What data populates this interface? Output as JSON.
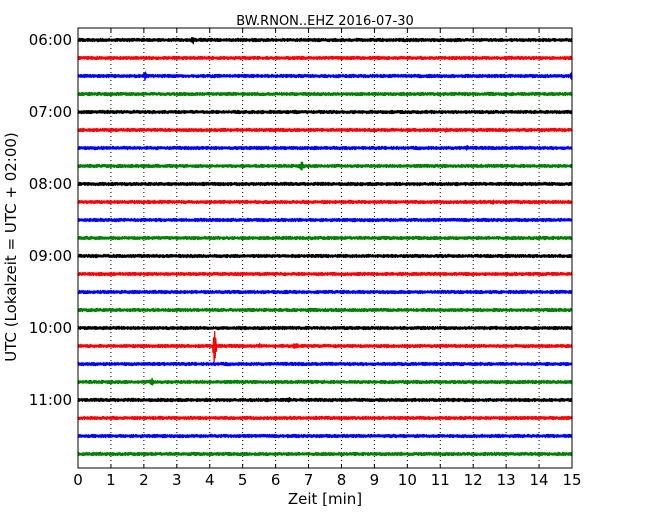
{
  "chart_data": {
    "type": "line",
    "title": "BW.RNON..EHZ 2016-07-30",
    "xlabel": "Zeit  [min]",
    "ylabel": "UTC (Lokalzeit = UTC + 02:00)",
    "xlim": [
      0,
      15
    ],
    "x_ticks": [
      "0",
      "1",
      "2",
      "3",
      "4",
      "5",
      "6",
      "7",
      "8",
      "9",
      "10",
      "11",
      "12",
      "13",
      "14",
      "15"
    ],
    "y_ticks": [
      "06:00",
      "07:00",
      "08:00",
      "09:00",
      "10:00",
      "11:00"
    ],
    "grid": "vertical-dotted",
    "trace_colors": [
      "#000000",
      "#ff0000",
      "#0000ff",
      "#008000"
    ],
    "traces": [
      {
        "start": "06:00",
        "events": [
          [
            3.5,
            4
          ]
        ]
      },
      {
        "start": "06:15",
        "events": []
      },
      {
        "start": "06:30",
        "events": [
          [
            2.05,
            5
          ],
          [
            15.0,
            4
          ]
        ]
      },
      {
        "start": "06:45",
        "events": []
      },
      {
        "start": "07:00",
        "events": []
      },
      {
        "start": "07:15",
        "events": [
          [
            11.2,
            3
          ]
        ]
      },
      {
        "start": "07:30",
        "events": [
          [
            11.8,
            3
          ]
        ]
      },
      {
        "start": "07:45",
        "events": [
          [
            6.8,
            5
          ]
        ]
      },
      {
        "start": "08:00",
        "events": []
      },
      {
        "start": "08:15",
        "events": [
          [
            12.6,
            3
          ]
        ]
      },
      {
        "start": "08:30",
        "events": []
      },
      {
        "start": "08:45",
        "events": [
          [
            14.0,
            3
          ]
        ]
      },
      {
        "start": "09:00",
        "events": []
      },
      {
        "start": "09:15",
        "events": []
      },
      {
        "start": "09:30",
        "events": []
      },
      {
        "start": "09:45",
        "events": []
      },
      {
        "start": "10:00",
        "events": [
          [
            2.3,
            2
          ],
          [
            3.0,
            2
          ]
        ]
      },
      {
        "start": "10:15",
        "events": [
          [
            4.15,
            30
          ],
          [
            5.5,
            3
          ],
          [
            6.6,
            4
          ]
        ]
      },
      {
        "start": "10:30",
        "events": []
      },
      {
        "start": "10:45",
        "events": [
          [
            2.25,
            5
          ],
          [
            1.0,
            2
          ]
        ]
      },
      {
        "start": "11:00",
        "events": [
          [
            6.4,
            3
          ]
        ]
      },
      {
        "start": "11:15",
        "events": []
      },
      {
        "start": "11:30",
        "events": []
      },
      {
        "start": "11:45",
        "events": []
      }
    ]
  }
}
